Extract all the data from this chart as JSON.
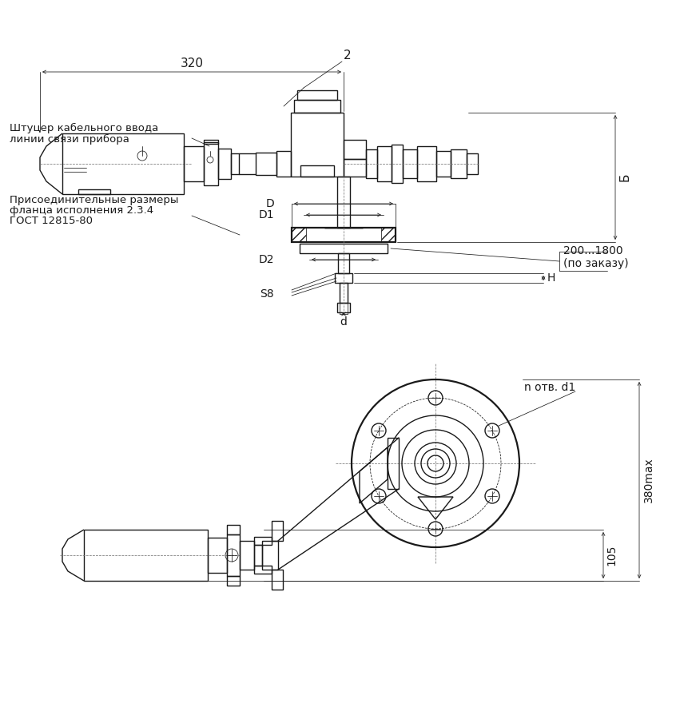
{
  "bg_color": "#ffffff",
  "lc": "#1a1a1a",
  "texts": {
    "dim_320": "320",
    "dim_2": "2",
    "dim_B": "Б",
    "dim_D": "D",
    "dim_D1": "D1",
    "dim_D2": "D2",
    "dim_S8": "S8",
    "dim_H": "H",
    "dim_d": "d",
    "dim_200_1800": "200...1800",
    "dim_po_zakazu": "(по заказу)",
    "label1_line1": "Штуцер кабельного ввода",
    "label1_line2": "линии связи прибора",
    "label2_line1": "Присоединительные размеры",
    "label2_line2": "фланца исполнения 2.3.4",
    "label2_line3": "ГОСТ 12815-80",
    "dim_n_otv_d1": "n отв. d1",
    "dim_105": "105",
    "dim_380max": "380max"
  }
}
